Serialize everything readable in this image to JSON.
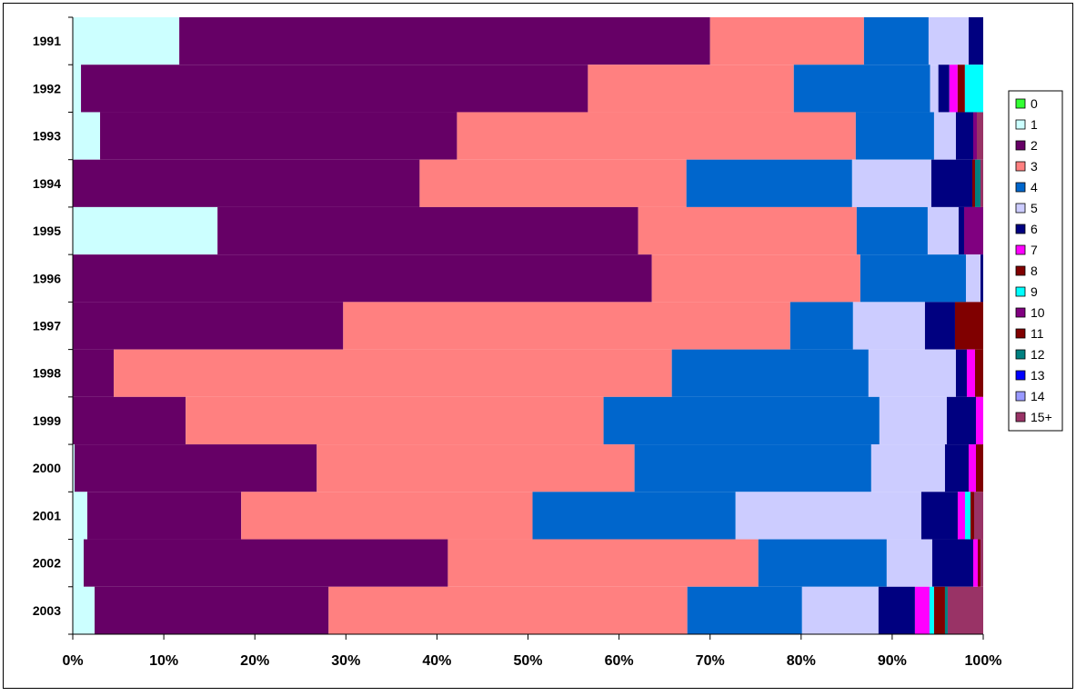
{
  "chart_data": {
    "type": "bar",
    "orientation": "horizontal",
    "stacked": "percent",
    "title": "",
    "xlabel": "",
    "ylabel": "",
    "xlim": [
      0,
      100
    ],
    "x_ticks": [
      "0%",
      "10%",
      "20%",
      "30%",
      "40%",
      "50%",
      "60%",
      "70%",
      "80%",
      "90%",
      "100%"
    ],
    "grid": false,
    "legend_position": "right",
    "categories": [
      "1991",
      "1992",
      "1993",
      "1994",
      "1995",
      "1996",
      "1997",
      "1998",
      "1999",
      "2000",
      "2001",
      "2002",
      "2003"
    ],
    "series": [
      {
        "name": "0",
        "color": "#33ff33",
        "values": [
          0,
          0,
          0,
          0,
          0,
          0,
          0,
          0,
          0,
          0,
          0,
          0,
          0
        ]
      },
      {
        "name": "1",
        "color": "#ccffff",
        "values": [
          11.7,
          0.9,
          3.0,
          0,
          15.9,
          0,
          0,
          0,
          0,
          0.2,
          1.6,
          1.2,
          2.4
        ]
      },
      {
        "name": "2",
        "color": "#660066",
        "values": [
          58.3,
          55.4,
          39.2,
          38.1,
          46.2,
          63.6,
          29.7,
          4.5,
          12.4,
          26.6,
          16.9,
          40.0,
          25.7
        ]
      },
      {
        "name": "3",
        "color": "#ff8080",
        "values": [
          16.9,
          22.5,
          43.8,
          29.3,
          24.0,
          22.9,
          49.1,
          61.3,
          45.9,
          34.9,
          32.0,
          34.1,
          39.4
        ]
      },
      {
        "name": "4",
        "color": "#0066cc",
        "values": [
          7.1,
          14.9,
          8.6,
          18.2,
          7.8,
          11.6,
          6.9,
          21.6,
          30.3,
          26.0,
          22.3,
          14.1,
          12.6
        ]
      },
      {
        "name": "5",
        "color": "#ccccff",
        "values": [
          4.4,
          0.9,
          2.4,
          8.7,
          3.4,
          1.6,
          7.9,
          9.6,
          7.4,
          8.1,
          20.4,
          5.0,
          8.4
        ]
      },
      {
        "name": "6",
        "color": "#000080",
        "values": [
          1.6,
          1.2,
          1.9,
          4.5,
          0.6,
          0.3,
          3.3,
          1.2,
          3.2,
          2.6,
          4.0,
          4.5,
          4.0
        ]
      },
      {
        "name": "7",
        "color": "#ff00ff",
        "values": [
          0,
          0.9,
          0,
          0,
          0,
          0,
          0,
          0.9,
          0.8,
          0.8,
          0.8,
          0.5,
          1.6
        ]
      },
      {
        "name": "8",
        "color": "#800000",
        "values": [
          0,
          0.8,
          0,
          0,
          0,
          0,
          3.1,
          0.9,
          0,
          0,
          0,
          0,
          0
        ]
      },
      {
        "name": "9",
        "color": "#00ffff",
        "values": [
          0,
          2.0,
          0,
          0,
          0,
          0,
          0,
          0,
          0,
          0,
          0.6,
          0,
          0.5
        ]
      },
      {
        "name": "10",
        "color": "#800080",
        "values": [
          0,
          0,
          0.4,
          0,
          2.1,
          0,
          0,
          0,
          0,
          0,
          0,
          0,
          0
        ]
      },
      {
        "name": "11",
        "color": "#800000",
        "values": [
          0,
          0,
          0,
          0.3,
          0,
          0,
          0,
          0,
          0,
          0.8,
          0.4,
          0.3,
          1.2
        ]
      },
      {
        "name": "12",
        "color": "#008080",
        "values": [
          0,
          0,
          0,
          0.6,
          0,
          0,
          0,
          0,
          0,
          0,
          0,
          0,
          0.3
        ]
      },
      {
        "name": "13",
        "color": "#0000ff",
        "values": [
          0,
          0,
          0,
          0,
          0,
          0,
          0,
          0,
          0,
          0,
          0,
          0,
          0
        ]
      },
      {
        "name": "14",
        "color": "#9999ff",
        "values": [
          0,
          0,
          0,
          0,
          0,
          0,
          0,
          0,
          0,
          0,
          0,
          0,
          0
        ]
      },
      {
        "name": "15+",
        "color": "#993366",
        "values": [
          0,
          0,
          0.7,
          0.3,
          0,
          0,
          0,
          0,
          0,
          0,
          1.0,
          0.3,
          3.9
        ]
      }
    ]
  }
}
